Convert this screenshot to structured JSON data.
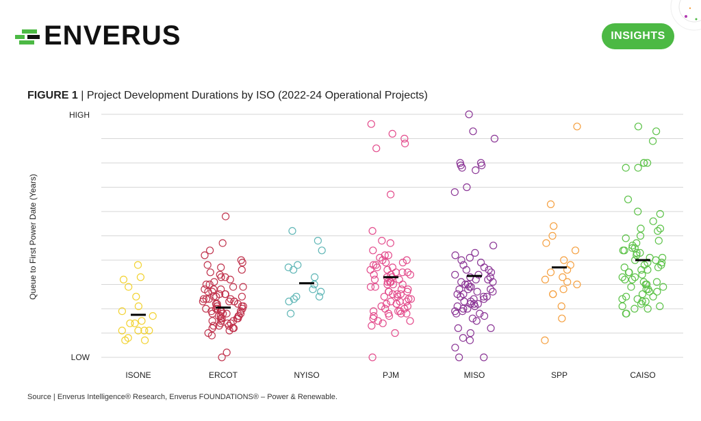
{
  "header": {
    "logo_text": "ENVERUS",
    "insights_label": "INSIGHTS",
    "brand_green": "#4cb944"
  },
  "figure": {
    "label": "FIGURE 1",
    "separator": " | ",
    "title": "Project Development Durations by ISO (2022-24 Operational Projects)"
  },
  "source_text": "Source | Enverus Intelligence® Research, Enverus FOUNDATIONS® – Power & Renewable.",
  "chart_data": {
    "type": "scatter",
    "subtype": "strip plot with median markers",
    "ylabel": "Queue to First Power Date (Years)",
    "y_tick_labels": {
      "high": "HIGH",
      "low": "LOW"
    },
    "ylim": [
      0,
      10
    ],
    "grid": true,
    "categories": [
      "ISONE",
      "ERCOT",
      "NYISO",
      "PJM",
      "MISO",
      "SPP",
      "CAISO"
    ],
    "series": [
      {
        "name": "ISONE",
        "color": "#f2d230",
        "median": 1.75,
        "values": [
          3.8,
          3.3,
          3.2,
          2.9,
          2.5,
          2.1,
          1.9,
          1.7,
          1.5,
          1.4,
          1.4,
          1.1,
          1.1,
          1.1,
          1.1,
          0.8,
          0.7,
          0.7
        ]
      },
      {
        "name": "ERCOT",
        "color": "#c0334d",
        "median": 2.05,
        "values": [
          5.8,
          4.7,
          4.4,
          4.2,
          4.0,
          3.9,
          3.8,
          3.7,
          3.6,
          3.5,
          3.4,
          3.3,
          3.2,
          3.1,
          3.0,
          2.9,
          2.8,
          2.7,
          2.6,
          2.5,
          2.4,
          2.3,
          2.2,
          2.1,
          2.0,
          1.9,
          1.8,
          1.7,
          1.6,
          1.5,
          1.4,
          1.3,
          1.2,
          1.1,
          1.0,
          0.9,
          3.3,
          3.0,
          2.8,
          2.6,
          2.4,
          2.3,
          2.1,
          2.0,
          1.9,
          1.8,
          1.7,
          1.6,
          1.5,
          1.4,
          1.3,
          1.2,
          2.9,
          2.7,
          2.5,
          2.3,
          2.2,
          2.0,
          1.8,
          1.6,
          1.5,
          1.3,
          2.6,
          2.4,
          2.2,
          2.1,
          1.9,
          1.7,
          1.4,
          1.2,
          2.8,
          2.5,
          2.3,
          2.0,
          1.8,
          1.6,
          2.4,
          2.1,
          1.9,
          1.7,
          0.2,
          0.0
        ]
      },
      {
        "name": "NYISO",
        "color": "#5fb6b6",
        "median": 3.05,
        "values": [
          5.2,
          4.8,
          4.4,
          3.8,
          3.7,
          3.6,
          3.3,
          3.0,
          2.8,
          2.7,
          2.5,
          2.5,
          2.4,
          2.3,
          1.8
        ]
      },
      {
        "name": "PJM",
        "color": "#e34c8c",
        "median": 3.3,
        "values": [
          9.6,
          9.2,
          9.0,
          8.8,
          8.6,
          6.7,
          5.2,
          4.8,
          4.7,
          4.4,
          4.2,
          4.1,
          4.0,
          3.9,
          3.8,
          3.7,
          3.6,
          3.5,
          3.4,
          3.3,
          3.2,
          3.1,
          3.0,
          2.9,
          2.8,
          2.7,
          2.6,
          2.5,
          2.4,
          2.3,
          2.2,
          2.1,
          2.0,
          1.9,
          1.8,
          1.7,
          1.6,
          1.5,
          1.4,
          1.3,
          1.0,
          4.2,
          3.9,
          3.7,
          3.5,
          3.3,
          3.1,
          2.9,
          2.7,
          2.5,
          2.3,
          2.1,
          1.9,
          1.7,
          1.5,
          4.0,
          3.6,
          3.4,
          3.2,
          3.0,
          2.8,
          2.6,
          2.4,
          2.2,
          2.0,
          1.8,
          3.8,
          3.4,
          3.0,
          2.6,
          2.2,
          1.8,
          3.5,
          3.1,
          2.7,
          2.3,
          1.9,
          0.0
        ]
      },
      {
        "name": "MISO",
        "color": "#8a3595",
        "median": 3.35,
        "values": [
          10.0,
          9.3,
          9.0,
          8.0,
          8.0,
          7.9,
          7.9,
          7.8,
          7.7,
          7.0,
          6.8,
          4.6,
          4.3,
          4.2,
          4.1,
          4.0,
          3.9,
          3.8,
          3.7,
          3.6,
          3.5,
          3.4,
          3.3,
          3.2,
          3.1,
          3.0,
          2.9,
          2.8,
          2.7,
          2.6,
          2.5,
          2.4,
          2.3,
          2.2,
          2.1,
          2.0,
          1.9,
          1.8,
          1.7,
          1.6,
          1.5,
          1.2,
          1.2,
          1.0,
          0.8,
          0.7,
          0.4,
          0.0,
          0.0,
          3.6,
          3.4,
          3.2,
          3.0,
          2.8,
          2.6,
          2.4,
          2.2,
          2.0,
          1.8,
          3.3,
          3.1,
          2.9,
          2.7,
          2.5,
          2.3,
          2.1,
          1.9,
          2.8,
          2.5,
          2.2
        ]
      },
      {
        "name": "SPP",
        "color": "#f5a040",
        "median": 3.7,
        "values": [
          9.5,
          6.3,
          5.4,
          5.0,
          4.7,
          4.4,
          4.0,
          3.8,
          3.6,
          3.5,
          3.3,
          3.2,
          3.1,
          3.0,
          2.8,
          2.6,
          2.6,
          2.1,
          1.6,
          0.7
        ]
      },
      {
        "name": "CAISO",
        "color": "#5cc248",
        "median": 4.0,
        "values": [
          9.5,
          9.3,
          8.9,
          8.0,
          8.0,
          8.0,
          7.8,
          7.8,
          6.5,
          6.0,
          5.9,
          5.6,
          5.3,
          5.3,
          5.2,
          5.0,
          4.9,
          4.8,
          4.7,
          4.6,
          4.5,
          4.4,
          4.3,
          4.2,
          4.1,
          4.0,
          3.9,
          3.8,
          3.7,
          3.6,
          3.5,
          3.4,
          3.3,
          3.2,
          3.1,
          3.0,
          2.9,
          2.8,
          2.7,
          2.6,
          2.5,
          2.4,
          2.3,
          2.2,
          2.1,
          2.0,
          1.8,
          1.8,
          4.5,
          4.3,
          4.1,
          3.9,
          3.7,
          3.5,
          3.3,
          3.1,
          2.9,
          2.7,
          2.5,
          2.3,
          2.1,
          4.4,
          4.0,
          3.6,
          3.2,
          2.8,
          2.4,
          2.0,
          3.8,
          3.0
        ]
      }
    ]
  }
}
